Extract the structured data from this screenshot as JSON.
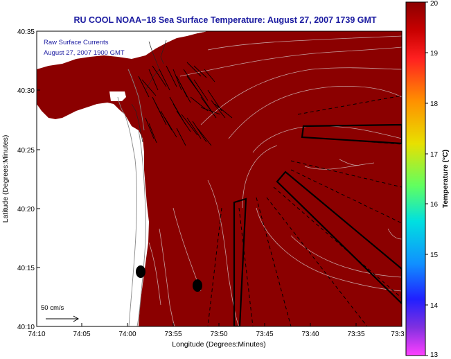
{
  "title": "RU COOL  NOAA−18  Sea Surface Temperature:  August 27, 2007 1739 GMT",
  "overlay": {
    "line1": "Raw Surface Currents",
    "line2": "August 27, 2007 1900 GMT"
  },
  "scale_label": "50 cm/s",
  "axes": {
    "xlabel": "Longitude (Degrees:Minutes)",
    "ylabel": "Latitude (Degrees:Minutes)",
    "x_ticks": [
      "74:10",
      "74:05",
      "74:00",
      "73:55",
      "73:50",
      "73:45",
      "73:40",
      "73:35",
      "73:3"
    ],
    "y_ticks": [
      "40:35",
      "40:30",
      "40:25",
      "40:20",
      "40:15",
      "40:10"
    ]
  },
  "colorbar": {
    "label": "Temperature (°C)",
    "ticks": [
      "20",
      "19",
      "18",
      "17",
      "16",
      "15",
      "14",
      "13"
    ],
    "min": 13,
    "max": 20
  },
  "colors": {
    "sst_fill": "#8b0000",
    "title": "#1a1aa0",
    "contour": "#c8a0a0"
  }
}
